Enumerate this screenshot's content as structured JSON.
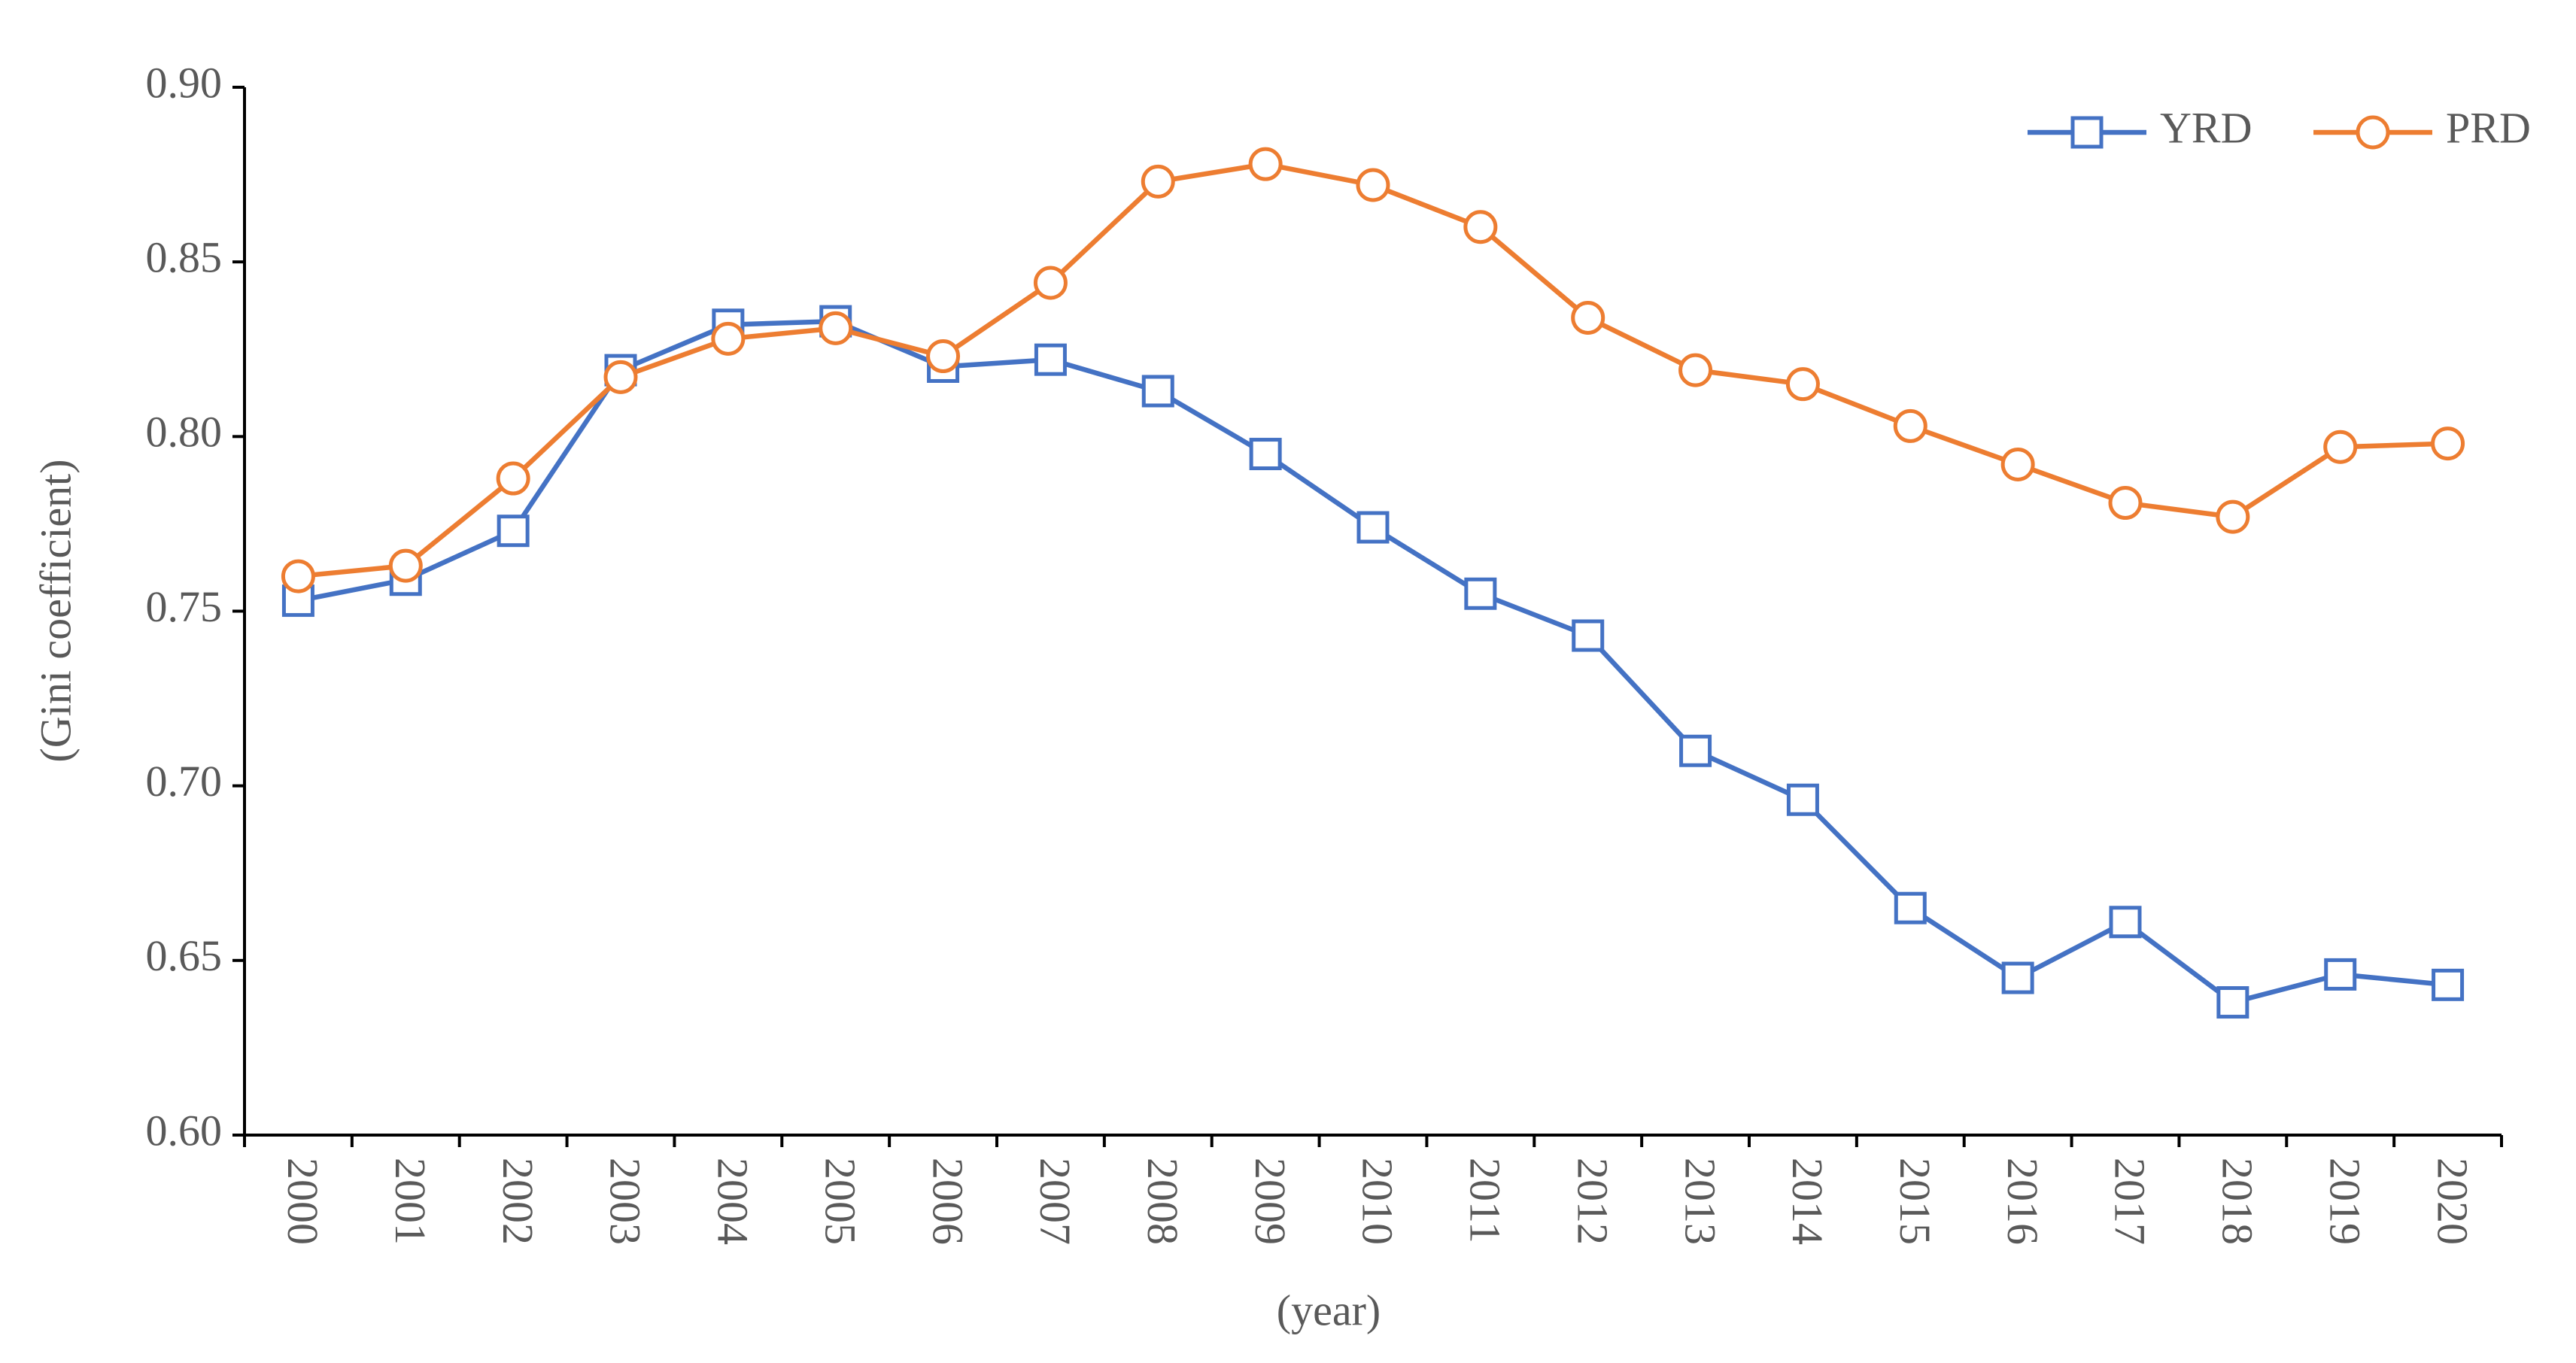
{
  "chart_data": {
    "type": "line",
    "x_label": "(year)",
    "y_label": "(Gini coefficient)",
    "categories": [
      "2000",
      "2001",
      "2002",
      "2003",
      "2004",
      "2005",
      "2006",
      "2007",
      "2008",
      "2009",
      "2010",
      "2011",
      "2012",
      "2013",
      "2014",
      "2015",
      "2016",
      "2017",
      "2018",
      "2019",
      "2020"
    ],
    "series": [
      {
        "name": "YRD",
        "color": "#4472c4",
        "marker": "square",
        "values": [
          0.753,
          0.759,
          0.773,
          0.819,
          0.832,
          0.833,
          0.82,
          0.822,
          0.813,
          0.795,
          0.774,
          0.755,
          0.743,
          0.71,
          0.696,
          0.665,
          0.645,
          0.661,
          0.638,
          0.646,
          0.643
        ]
      },
      {
        "name": "PRD",
        "color": "#ed7d31",
        "marker": "circle",
        "values": [
          0.76,
          0.763,
          0.788,
          0.817,
          0.828,
          0.831,
          0.823,
          0.844,
          0.873,
          0.878,
          0.872,
          0.86,
          0.834,
          0.819,
          0.815,
          0.803,
          0.792,
          0.781,
          0.777,
          0.797,
          0.798
        ]
      }
    ],
    "ylim": [
      0.6,
      0.9
    ],
    "yticks": [
      {
        "value": 0.6,
        "label": "0.60"
      },
      {
        "value": 0.65,
        "label": "0.65"
      },
      {
        "value": 0.7,
        "label": "0.70"
      },
      {
        "value": 0.75,
        "label": "0.75"
      },
      {
        "value": 0.8,
        "label": "0.80"
      },
      {
        "value": 0.85,
        "label": "0.85"
      },
      {
        "value": 0.9,
        "label": "0.90"
      }
    ],
    "grid": false,
    "legend": "top-right"
  }
}
